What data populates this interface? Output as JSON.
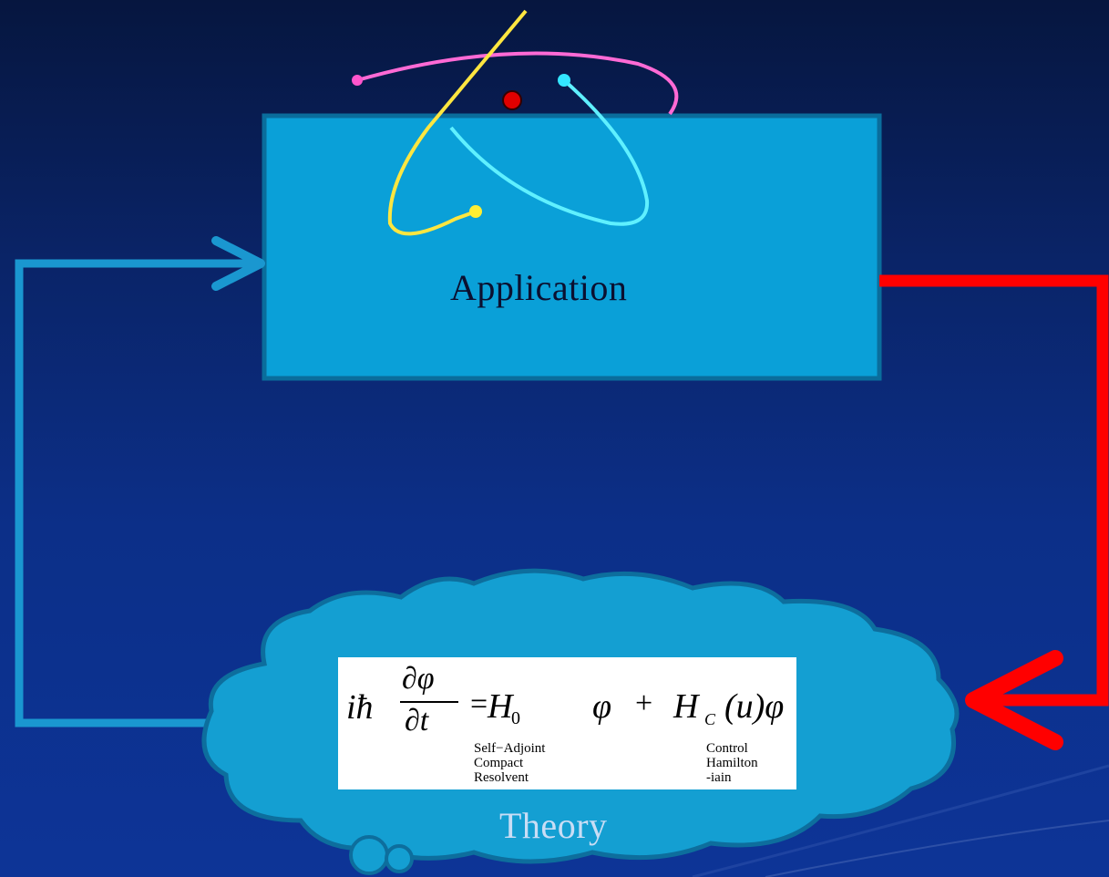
{
  "diagram": {
    "application_label": "Application",
    "theory_label": "Theory",
    "equation": {
      "lhs_ih": "iħ",
      "lhs_num": "∂φ",
      "lhs_den": "∂t",
      "equals": "=",
      "h0": "H",
      "h0_sub": "0",
      "phi1": "φ",
      "plus": "+",
      "hc": "H",
      "hc_sub": "C",
      "hc_arg": "(u)φ",
      "brace1_lines": [
        "Self−Adjoint",
        "Compact",
        "Resolvent"
      ],
      "brace2_lines": [
        "Control",
        "Hamilton",
        "-iain"
      ]
    }
  },
  "colors": {
    "box_fill": "#0aa0d8",
    "box_stroke": "#0a6d9c",
    "arrow_blue": "#1a97d0",
    "arrow_red": "#ff0000",
    "cloud_fill": "#149fd2"
  }
}
